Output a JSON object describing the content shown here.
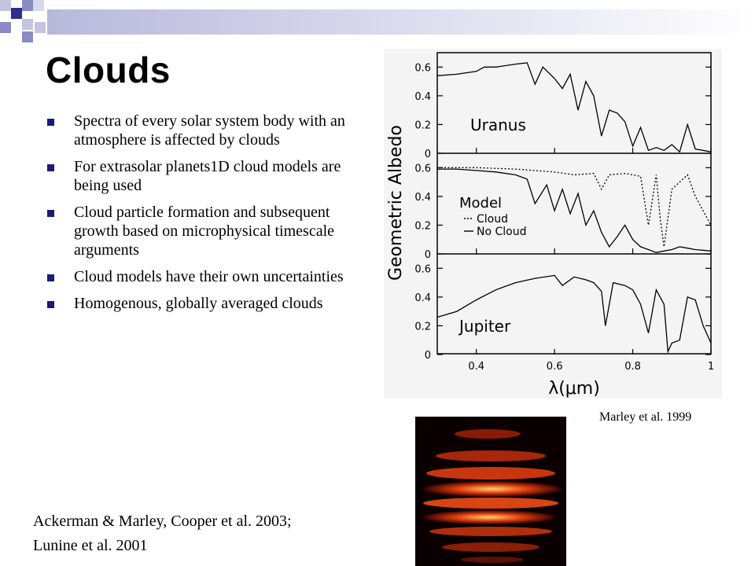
{
  "slide": {
    "title": "Clouds",
    "bullets": [
      "Spectra of every solar system body with an atmosphere is affected by clouds",
      " For extrasolar planets1D cloud models are being used",
      "Cloud particle formation and subsequent growth based on microphysical timescale arguments",
      "Cloud models have their own uncertainties",
      "Homogenous, globally averaged clouds"
    ],
    "credit_figure": "Marley et al. 1999",
    "credit_refs": [
      "Ackerman & Marley, Cooper et al. 2003;",
      "Lunine et al. 2001"
    ],
    "colors": {
      "bullet": "#1a1a7a",
      "banner_dark": "#2e2e8e",
      "banner_light": "#b8b8dc"
    }
  },
  "figure": {
    "ylabel": "Geometric Albedo",
    "xlabel": "λ(μm)",
    "x_ticks": [
      "0.4",
      "0.6",
      "0.8",
      "1"
    ],
    "y_ticks": [
      "0",
      "0.2",
      "0.4",
      "0.6"
    ],
    "panel_labels": [
      "Uranus",
      "Model",
      "Jupiter"
    ],
    "legend": [
      "Cloud",
      "No Cloud"
    ]
  },
  "chart_data": {
    "type": "line",
    "xlabel": "λ(μm)",
    "ylabel": "Geometric Albedo",
    "xlim": [
      0.3,
      1.0
    ],
    "ylim": [
      0,
      0.7
    ],
    "panels": [
      {
        "label": "Uranus",
        "series": [
          {
            "name": "",
            "style": "solid",
            "x": [
              0.3,
              0.35,
              0.4,
              0.42,
              0.45,
              0.5,
              0.53,
              0.55,
              0.57,
              0.6,
              0.62,
              0.64,
              0.66,
              0.68,
              0.7,
              0.72,
              0.74,
              0.76,
              0.78,
              0.8,
              0.82,
              0.84,
              0.86,
              0.88,
              0.9,
              0.92,
              0.94,
              0.96,
              1.0
            ],
            "y": [
              0.54,
              0.55,
              0.57,
              0.6,
              0.6,
              0.62,
              0.63,
              0.48,
              0.6,
              0.52,
              0.45,
              0.55,
              0.3,
              0.5,
              0.4,
              0.12,
              0.3,
              0.28,
              0.22,
              0.05,
              0.18,
              0.02,
              0.04,
              0.02,
              0.06,
              0.01,
              0.2,
              0.03,
              0.01
            ]
          }
        ]
      },
      {
        "label": "Model",
        "series": [
          {
            "name": "Cloud",
            "style": "dotted",
            "x": [
              0.3,
              0.4,
              0.5,
              0.6,
              0.65,
              0.7,
              0.72,
              0.74,
              0.78,
              0.82,
              0.84,
              0.86,
              0.87,
              0.88,
              0.9,
              0.94,
              0.96,
              1.0
            ],
            "y": [
              0.6,
              0.6,
              0.59,
              0.57,
              0.55,
              0.56,
              0.45,
              0.55,
              0.56,
              0.54,
              0.2,
              0.55,
              0.25,
              0.05,
              0.45,
              0.55,
              0.4,
              0.2
            ]
          },
          {
            "name": "No Cloud",
            "style": "solid",
            "x": [
              0.3,
              0.35,
              0.4,
              0.45,
              0.5,
              0.53,
              0.55,
              0.58,
              0.6,
              0.62,
              0.64,
              0.66,
              0.68,
              0.7,
              0.72,
              0.74,
              0.76,
              0.78,
              0.8,
              0.82,
              0.84,
              0.86,
              0.88,
              0.9,
              0.92,
              0.94,
              0.96,
              1.0
            ],
            "y": [
              0.59,
              0.59,
              0.58,
              0.57,
              0.55,
              0.52,
              0.35,
              0.48,
              0.3,
              0.45,
              0.28,
              0.42,
              0.2,
              0.3,
              0.15,
              0.05,
              0.12,
              0.2,
              0.1,
              0.05,
              0.03,
              0.01,
              0.02,
              0.03,
              0.05,
              0.04,
              0.03,
              0.02
            ]
          }
        ]
      },
      {
        "label": "Jupiter",
        "series": [
          {
            "name": "",
            "style": "solid",
            "x": [
              0.3,
              0.35,
              0.4,
              0.45,
              0.5,
              0.55,
              0.6,
              0.62,
              0.65,
              0.68,
              0.7,
              0.72,
              0.73,
              0.75,
              0.78,
              0.8,
              0.82,
              0.84,
              0.86,
              0.88,
              0.89,
              0.9,
              0.92,
              0.94,
              0.96,
              0.98,
              1.0
            ],
            "y": [
              0.26,
              0.3,
              0.38,
              0.45,
              0.5,
              0.53,
              0.55,
              0.48,
              0.54,
              0.52,
              0.5,
              0.44,
              0.2,
              0.5,
              0.48,
              0.45,
              0.35,
              0.15,
              0.45,
              0.35,
              0.02,
              0.08,
              0.1,
              0.4,
              0.38,
              0.2,
              0.08
            ]
          }
        ]
      }
    ]
  }
}
